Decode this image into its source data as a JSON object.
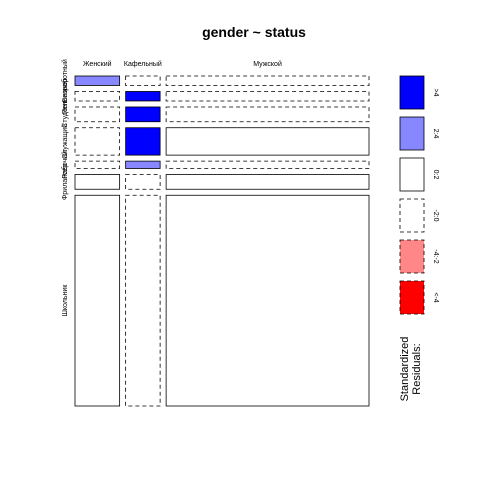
{
  "chart_data": {
    "type": "mosaic",
    "title": "gender ~ status",
    "x_variable": "gender",
    "y_variable": "status",
    "columns": [
      {
        "label": "Женский",
        "weight": 0.22
      },
      {
        "label": "Кафельный",
        "weight": 0.17
      },
      {
        "label": "Мужской",
        "weight": 1.0
      }
    ],
    "rows": [
      {
        "label": "Безработный",
        "weight": 0.045
      },
      {
        "label": "Пенсионер",
        "weight": 0.045
      },
      {
        "label": "Студент",
        "weight": 0.07
      },
      {
        "label": "Служащий",
        "weight": 0.13
      },
      {
        "label": "Рабочий",
        "weight": 0.035
      },
      {
        "label": "Фрилансер",
        "weight": 0.07
      },
      {
        "label": "Школьник",
        "weight": 1.0
      }
    ],
    "row_axis_labels": [
      "Безработный",
      "Пенсионер",
      "Студент",
      "Служащий",
      "Рабочий",
      "Фрилансер",
      "Школьник"
    ],
    "cells": [
      [
        "2:4",
        "<0",
        "<0",
        "<0",
        "<0",
        "0:2",
        "0:2"
      ],
      [
        "<0",
        ">4",
        ">4",
        ">4",
        "2:4",
        "<0",
        "<0"
      ],
      [
        "<0",
        "<0",
        "<0",
        "0:2",
        "<0",
        "0:2",
        "0:2"
      ]
    ],
    "legend": {
      "title_lines": [
        "Standardized",
        "Residuals:"
      ],
      "entries": [
        {
          "label": ">4",
          "fill": "#0000ff",
          "dashed": false
        },
        {
          "label": "2:4",
          "fill": "#8787ff",
          "dashed": false
        },
        {
          "label": "0:2",
          "fill": "#ffffff",
          "dashed": false
        },
        {
          "label": "-2:0",
          "fill": "#ffffff",
          "dashed": true
        },
        {
          "label": "-4:-2",
          "fill": "#ff8787",
          "dashed": true
        },
        {
          "label": "<-4",
          "fill": "#ff0000",
          "dashed": true
        }
      ]
    },
    "colors": {
      "strong_positive": "#0000ff",
      "positive": "#8787ff",
      "neutral": "#ffffff",
      "negative": "#ff8787",
      "strong_negative": "#ff0000"
    }
  }
}
